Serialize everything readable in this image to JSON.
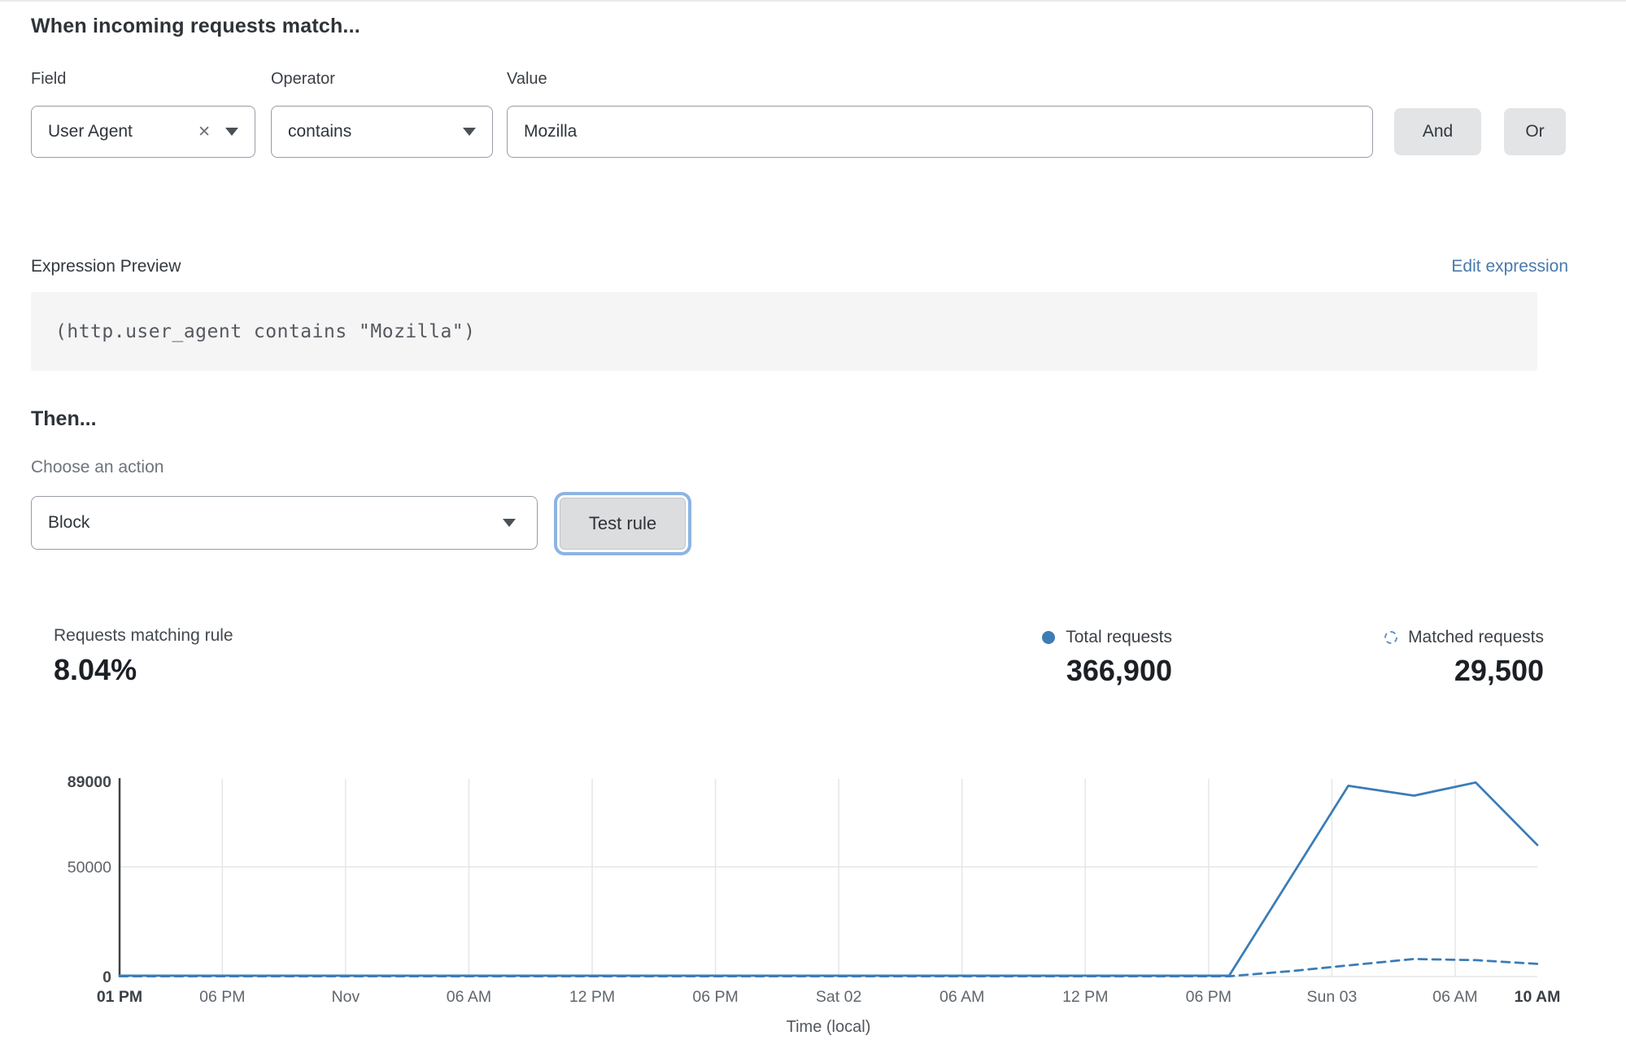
{
  "builder": {
    "heading": "When incoming requests match...",
    "field_label": "Field",
    "field_value": "User Agent",
    "operator_label": "Operator",
    "operator_value": "contains",
    "value_label": "Value",
    "value_text": "Mozilla",
    "and_label": "And",
    "or_label": "Or",
    "remove_icon_glyph": "✕"
  },
  "expression": {
    "label": "Expression Preview",
    "edit_link": "Edit expression",
    "code": "(http.user_agent contains \"Mozilla\")"
  },
  "action": {
    "heading": "Then...",
    "choose_label": "Choose an action",
    "selected": "Block",
    "test_button": "Test rule"
  },
  "stats": {
    "matching_label": "Requests matching rule",
    "matching_value": "8.04%",
    "total_label": "Total requests",
    "total_value": "366,900",
    "matched_label": "Matched requests",
    "matched_value": "29,500"
  },
  "chart_data": {
    "type": "line",
    "title": "",
    "xlabel": "Time (local)",
    "ylabel": "",
    "ylim": [
      0,
      89000
    ],
    "x_span_hours": 69,
    "grid": true,
    "legend_position": "above-chart-right",
    "yticks": [
      {
        "v": 89000,
        "label": "89000",
        "bold": true,
        "grid": false
      },
      {
        "v": 50000,
        "label": "50000",
        "bold": false,
        "grid": true
      },
      {
        "v": 0,
        "label": "0",
        "bold": true,
        "grid": true
      }
    ],
    "xticks": [
      {
        "h": 0,
        "label": "01 PM",
        "bold": true,
        "grid": false
      },
      {
        "h": 5,
        "label": "06 PM",
        "bold": false,
        "grid": true
      },
      {
        "h": 11,
        "label": "Nov",
        "bold": false,
        "grid": true
      },
      {
        "h": 17,
        "label": "06 AM",
        "bold": false,
        "grid": true
      },
      {
        "h": 23,
        "label": "12 PM",
        "bold": false,
        "grid": true
      },
      {
        "h": 29,
        "label": "06 PM",
        "bold": false,
        "grid": true
      },
      {
        "h": 35,
        "label": "Sat 02",
        "bold": false,
        "grid": true
      },
      {
        "h": 41,
        "label": "06 AM",
        "bold": false,
        "grid": true
      },
      {
        "h": 47,
        "label": "12 PM",
        "bold": false,
        "grid": true
      },
      {
        "h": 53,
        "label": "06 PM",
        "bold": false,
        "grid": true
      },
      {
        "h": 59,
        "label": "Sun 03",
        "bold": false,
        "grid": true
      },
      {
        "h": 65,
        "label": "06 AM",
        "bold": false,
        "grid": true
      },
      {
        "h": 69,
        "label": "10 AM",
        "bold": true,
        "grid": false
      }
    ],
    "series": [
      {
        "name": "Total requests",
        "line_style": "solid",
        "color": "#3a7cb8",
        "points": [
          [
            0,
            400
          ],
          [
            54,
            400
          ],
          [
            59.8,
            87000
          ],
          [
            63,
            82500
          ],
          [
            66,
            88500
          ],
          [
            69,
            60000
          ]
        ]
      },
      {
        "name": "Matched requests",
        "line_style": "dashed",
        "color": "#3a7cb8",
        "points": [
          [
            0,
            150
          ],
          [
            54,
            150
          ],
          [
            57,
            2500
          ],
          [
            59.7,
            5000
          ],
          [
            63,
            8000
          ],
          [
            66,
            7500
          ],
          [
            69,
            5800
          ]
        ]
      }
    ]
  },
  "colors": {
    "accent_blue": "#3a7cb8",
    "link_blue": "#4879ac",
    "button_gray": "#e3e4e5",
    "focus_ring_blue": "#8db4e3",
    "gridline": "#e5e6e7",
    "axis": "#3f4347"
  }
}
